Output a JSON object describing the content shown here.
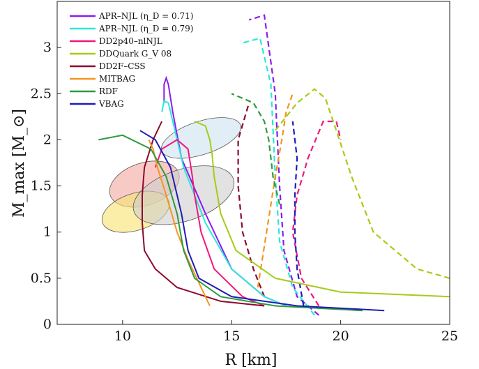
{
  "chart_data": {
    "type": "line",
    "xlabel": "R [km]",
    "ylabel": "M_max [M_⊙]",
    "xlim": [
      7,
      25
    ],
    "ylim": [
      0,
      3.5
    ],
    "x_ticks": [
      10,
      15,
      20,
      25
    ],
    "y_ticks": [
      0,
      0.5,
      1,
      1.5,
      2,
      2.5,
      3
    ],
    "legend_position": "top-left",
    "series": [
      {
        "name": "APR–NJL (η_D = 0.71)",
        "color": "#8b1cf0",
        "x": [
          17.5,
          16.5,
          15.0,
          13.8,
          12.7,
          12.3,
          12.1,
          12.0,
          11.9,
          11.9
        ],
        "y": [
          0.2,
          0.3,
          0.6,
          1.2,
          1.8,
          2.3,
          2.6,
          2.67,
          2.6,
          2.4
        ]
      },
      {
        "name": "APR–NJL (η_D = 0.79)",
        "color": "#2ce8d8",
        "x": [
          17.5,
          16.5,
          15.0,
          13.8,
          12.8,
          12.4,
          12.1,
          11.9,
          11.8
        ],
        "y": [
          0.2,
          0.3,
          0.6,
          1.1,
          1.7,
          2.1,
          2.4,
          2.42,
          2.3
        ]
      },
      {
        "name": "DD2p40–nlNJL",
        "color": "#f0187c",
        "x": [
          16.5,
          15.5,
          14.2,
          13.6,
          13.3,
          13.2,
          13.0,
          12.5,
          11.8,
          11.5
        ],
        "y": [
          0.2,
          0.3,
          0.6,
          1.0,
          1.4,
          1.6,
          1.9,
          2.0,
          1.9,
          1.7
        ]
      },
      {
        "name": "DDQuark G_V 08",
        "color": "#a5cc18",
        "x": [
          25.0,
          20.0,
          17.0,
          15.2,
          14.5,
          14.2,
          14.1,
          14.0,
          13.8,
          13.3
        ],
        "y": [
          0.3,
          0.35,
          0.5,
          0.8,
          1.2,
          1.6,
          1.85,
          2.0,
          2.15,
          2.2
        ]
      },
      {
        "name": "DD2F–CSS",
        "color": "#8c0a2e",
        "x": [
          16.5,
          14.5,
          12.5,
          11.5,
          11.0,
          10.9,
          10.9,
          11.0,
          11.4,
          11.8
        ],
        "y": [
          0.2,
          0.25,
          0.4,
          0.6,
          0.8,
          1.1,
          1.4,
          1.7,
          2.0,
          2.2
        ]
      },
      {
        "name": "MITBAG",
        "color": "#f6941f",
        "x": [
          14.0,
          13.6,
          13.0,
          12.5,
          12.0,
          11.6,
          11.4,
          11.2
        ],
        "y": [
          0.2,
          0.4,
          0.7,
          1.0,
          1.4,
          1.7,
          1.9,
          2.0
        ]
      },
      {
        "name": "RDF",
        "color": "#2e9a3e",
        "x": [
          21.0,
          17.0,
          14.5,
          13.3,
          12.8,
          12.5,
          12.0,
          11.3,
          10.0,
          8.9
        ],
        "y": [
          0.15,
          0.2,
          0.3,
          0.5,
          0.8,
          1.2,
          1.6,
          1.9,
          2.05,
          2.0
        ]
      },
      {
        "name": "VBAG",
        "color": "#1d1db8",
        "x": [
          22.0,
          18.0,
          15.0,
          13.5,
          13.0,
          12.7,
          12.2,
          11.5,
          10.8
        ],
        "y": [
          0.15,
          0.2,
          0.3,
          0.5,
          0.8,
          1.2,
          1.7,
          2.0,
          2.1
        ]
      }
    ],
    "dashed_series": [
      {
        "color": "#8b1cf0",
        "x": [
          19.0,
          18.0,
          17.4,
          17.2,
          17.0,
          16.5,
          15.8
        ],
        "y": [
          0.1,
          0.3,
          0.8,
          1.5,
          2.5,
          3.35,
          3.3
        ]
      },
      {
        "color": "#2ce8d8",
        "x": [
          18.8,
          17.8,
          17.2,
          17.0,
          16.8,
          16.3,
          15.5
        ],
        "y": [
          0.1,
          0.4,
          0.9,
          1.6,
          2.6,
          3.1,
          3.05
        ]
      },
      {
        "color": "#f0187c",
        "x": [
          19.0,
          18.2,
          17.8,
          18.0,
          18.5,
          19.2,
          19.8,
          20.0
        ],
        "y": [
          0.2,
          0.5,
          1.0,
          1.4,
          1.8,
          2.2,
          2.2,
          2.0
        ]
      },
      {
        "color": "#a5cc18",
        "x": [
          25.0,
          23.5,
          21.5,
          20.5,
          19.8,
          19.3,
          18.8,
          18.0,
          17.0
        ],
        "y": [
          0.5,
          0.6,
          1.0,
          1.6,
          2.1,
          2.45,
          2.55,
          2.4,
          2.1
        ]
      },
      {
        "color": "#8c0a2e",
        "x": [
          16.5,
          16.0,
          15.5,
          15.3,
          15.3,
          15.8
        ],
        "y": [
          0.3,
          0.6,
          1.0,
          1.5,
          2.0,
          2.4
        ]
      },
      {
        "color": "#f6941f",
        "x": [
          16.2,
          16.6,
          17.0,
          17.3,
          17.5,
          17.8
        ],
        "y": [
          0.4,
          1.0,
          1.6,
          2.0,
          2.3,
          2.5
        ]
      },
      {
        "color": "#1d1db8",
        "x": [
          18.3,
          18.0,
          17.9,
          17.9,
          18.0,
          17.8
        ],
        "y": [
          0.2,
          0.6,
          1.0,
          1.4,
          1.8,
          2.2
        ]
      },
      {
        "color": "#2e9a3e",
        "x": [
          17.2,
          16.9,
          16.7,
          16.5,
          16.0,
          15.0
        ],
        "y": [
          1.3,
          1.6,
          2.0,
          2.2,
          2.4,
          2.5
        ]
      }
    ],
    "contours": [
      {
        "color": "#f4a7a0",
        "cx": 11.0,
        "cy": 1.52,
        "rx": 1.65,
        "ry": 0.23
      },
      {
        "color": "#f7e36f",
        "cx": 10.6,
        "cy": 1.22,
        "rx": 1.6,
        "ry": 0.2
      },
      {
        "color": "#cfcfcf",
        "cx": 12.8,
        "cy": 1.4,
        "rx": 2.4,
        "ry": 0.28
      },
      {
        "color": "#cfe3ee",
        "cx": 13.6,
        "cy": 2.02,
        "rx": 1.9,
        "ry": 0.18
      }
    ]
  }
}
